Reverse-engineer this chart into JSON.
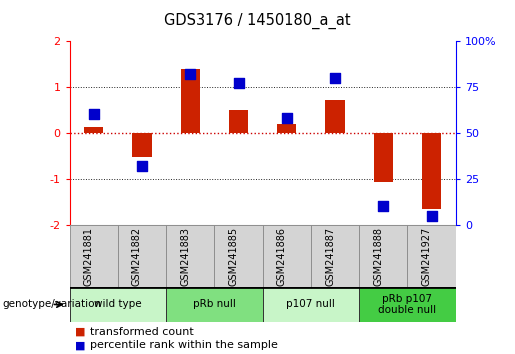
{
  "title": "GDS3176 / 1450180_a_at",
  "samples": [
    "GSM241881",
    "GSM241882",
    "GSM241883",
    "GSM241885",
    "GSM241886",
    "GSM241887",
    "GSM241888",
    "GSM241927"
  ],
  "transformed_count": [
    0.12,
    -0.52,
    1.38,
    0.5,
    0.18,
    0.72,
    -1.08,
    -1.65
  ],
  "percentile_rank": [
    60,
    32,
    82,
    77,
    58,
    80,
    10,
    5
  ],
  "groups": [
    {
      "label": "wild type",
      "samples": [
        0,
        1
      ],
      "color": "#c8f5c8"
    },
    {
      "label": "pRb null",
      "samples": [
        2,
        3
      ],
      "color": "#80e080"
    },
    {
      "label": "p107 null",
      "samples": [
        4,
        5
      ],
      "color": "#c8f5c8"
    },
    {
      "label": "pRb p107\ndouble null",
      "samples": [
        6,
        7
      ],
      "color": "#44cc44"
    }
  ],
  "ylim": [
    -2,
    2
  ],
  "y2lim": [
    0,
    100
  ],
  "yticks_left": [
    -2,
    -1,
    0,
    1,
    2
  ],
  "yticks_right": [
    0,
    25,
    50,
    75,
    100
  ],
  "bar_color": "#cc2200",
  "dot_color": "#0000cc",
  "hline0_color": "#cc0000",
  "hline_color": "#222222",
  "bg_color": "#ffffff",
  "bar_width": 0.4,
  "dot_size": 45,
  "legend_labels": [
    "transformed count",
    "percentile rank within the sample"
  ],
  "genotype_label": "genotype/variation"
}
